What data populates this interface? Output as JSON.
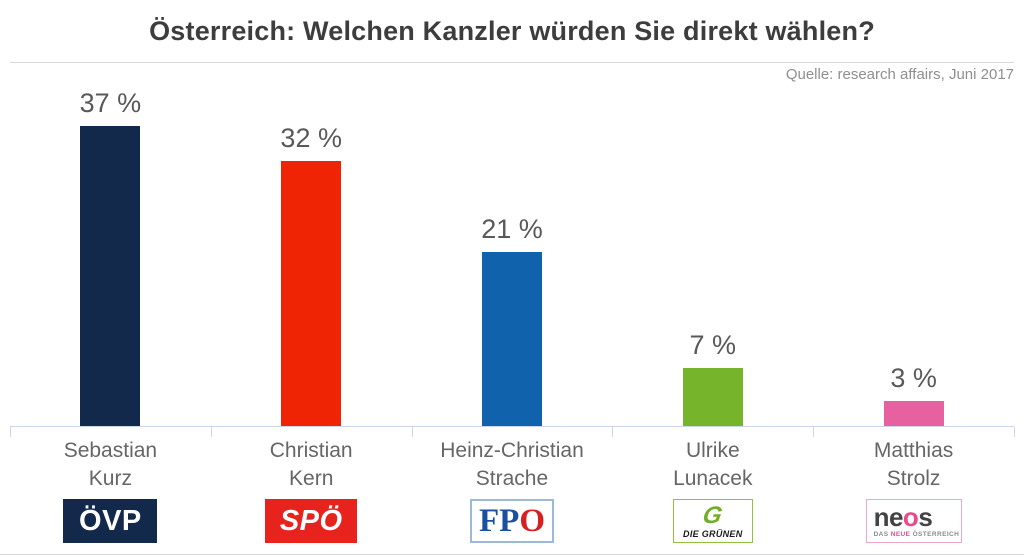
{
  "header": {
    "title": "Österreich: Welchen Kanzler würden Sie direkt wählen?",
    "source": "Quelle: research affairs, Juni 2017"
  },
  "chart_data": {
    "type": "bar",
    "title": "Österreich: Welchen Kanzler würden Sie direkt wählen?",
    "categories": [
      "Sebastian Kurz",
      "Christian Kern",
      "Heinz-Christian Strache",
      "Ulrike Lunacek",
      "Matthias Strolz"
    ],
    "parties": [
      "ÖVP",
      "SPÖ",
      "FPÖ",
      "Die Grünen",
      "NEOS"
    ],
    "values": [
      37,
      32,
      21,
      7,
      3
    ],
    "value_labels": [
      "37 %",
      "32 %",
      "21 %",
      "7 %",
      "3 %"
    ],
    "bar_colors": [
      "#12294b",
      "#ee2405",
      "#0f62ab",
      "#76b52b",
      "#e7609f"
    ],
    "xlabel": "",
    "ylabel": "",
    "ylim": [
      0,
      40
    ],
    "grid": false,
    "legend_position": "none"
  },
  "bars": [
    {
      "name_line1": "Sebastian",
      "name_line2": "Kurz",
      "value": 37,
      "value_label": "37 %",
      "color": "#12294b",
      "party": "ÖVP"
    },
    {
      "name_line1": "Christian",
      "name_line2": "Kern",
      "value": 32,
      "value_label": "32 %",
      "color": "#ee2405",
      "party": "SPÖ"
    },
    {
      "name_line1": "Heinz-Christian",
      "name_line2": "Strache",
      "value": 21,
      "value_label": "21 %",
      "color": "#0f62ab",
      "party": "FPÖ"
    },
    {
      "name_line1": "Ulrike",
      "name_line2": "Lunacek",
      "value": 7,
      "value_label": "7 %",
      "color": "#76b52b",
      "party": "Die Grünen"
    },
    {
      "name_line1": "Matthias",
      "name_line2": "Strolz",
      "value": 3,
      "value_label": "3 %",
      "color": "#e7609f",
      "party": "NEOS"
    }
  ],
  "logos": {
    "ovp": {
      "text": "ÖVP",
      "bg": "#12294b",
      "fg": "#ffffff"
    },
    "spo": {
      "text": "SPÖ",
      "bg": "#e8231d",
      "fg": "#ffffff"
    },
    "fpo": {
      "text_blue": "FP",
      "text_red": "O",
      "blue": "#1b4fa0",
      "red": "#d62021",
      "border": "#9db9da"
    },
    "gruene": {
      "g": "G",
      "label": "DIE GRÜNEN",
      "green": "#72ae28",
      "border": "#94c13d"
    },
    "neos": {
      "part1": "ne",
      "part2": "o",
      "part3": "s",
      "subtitle_1": "DAS ",
      "subtitle_2": "NEUE",
      "subtitle_3": " ÖSTERREICH",
      "pink": "#e9498f",
      "dark": "#434343",
      "border": "#f0a8c8"
    }
  }
}
